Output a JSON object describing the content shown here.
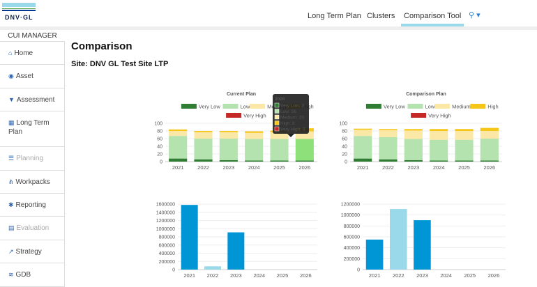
{
  "header": {
    "logo": "DNV·GL",
    "nav": [
      {
        "label": "Long Term Plan"
      },
      {
        "label": "Clusters"
      },
      {
        "label": "Comparison Tool",
        "active": true
      }
    ],
    "user_icon": "user-icon",
    "accent": "#99d9ea"
  },
  "sidebar": {
    "title": "CUI MANAGER",
    "items": [
      {
        "label": "Home",
        "icon": "home-icon",
        "glyph": "⌂"
      },
      {
        "label": "Asset",
        "icon": "cube-icon",
        "glyph": "◉"
      },
      {
        "label": "Assessment",
        "icon": "filter-icon",
        "glyph": "▼"
      },
      {
        "label": "Long Term Plan",
        "icon": "calendar-icon",
        "glyph": "▦"
      },
      {
        "label": "Planning",
        "icon": "list-icon",
        "glyph": "☰",
        "disabled": true
      },
      {
        "label": "Workpacks",
        "icon": "sitemap-icon",
        "glyph": "⋔"
      },
      {
        "label": "Reporting",
        "icon": "gear-icon",
        "glyph": "✱"
      },
      {
        "label": "Evaluation",
        "icon": "file-icon",
        "glyph": "▤",
        "disabled": true
      },
      {
        "label": "Strategy",
        "icon": "line-chart-icon",
        "glyph": "↗"
      },
      {
        "label": "GDB",
        "icon": "database-icon",
        "glyph": "≋"
      }
    ]
  },
  "page": {
    "title": "Comparison",
    "site": "Site: DNV GL Test Site LTP"
  },
  "tooltip": {
    "title": "2026",
    "lines": [
      "Very Low: 3",
      "Low: 56",
      "Medium: 20",
      "High: 8",
      "Very High: 0"
    ]
  },
  "chart_data": [
    {
      "type": "bar",
      "stacked": true,
      "title": "Current Plan",
      "categories": [
        "2021",
        "2022",
        "2023",
        "2024",
        "2025",
        "2026"
      ],
      "ylim": [
        0,
        100
      ],
      "yticks": [
        0,
        20,
        40,
        60,
        80,
        100
      ],
      "legend": "top",
      "series": [
        {
          "name": "Very Low",
          "color": "#2e7d32",
          "values": [
            8,
            6,
            4,
            3,
            3,
            3
          ]
        },
        {
          "name": "Low",
          "color": "#b5e3b0",
          "values": [
            59,
            54,
            56,
            56,
            56,
            56
          ]
        },
        {
          "name": "Medium",
          "color": "#fbe8a6",
          "values": [
            13,
            17,
            17,
            16,
            18,
            20
          ]
        },
        {
          "name": "High",
          "color": "#f5c518",
          "values": [
            4,
            3,
            3,
            4,
            4,
            8
          ]
        },
        {
          "name": "Very High",
          "color": "#c62828",
          "values": [
            0,
            0,
            0,
            0,
            0,
            0
          ]
        }
      ]
    },
    {
      "type": "bar",
      "stacked": true,
      "title": "Comparison Plan",
      "categories": [
        "2021",
        "2022",
        "2023",
        "2024",
        "2025",
        "2026"
      ],
      "ylim": [
        0,
        100
      ],
      "yticks": [
        0,
        20,
        40,
        60,
        80,
        100
      ],
      "legend": "top",
      "series": [
        {
          "name": "Very Low",
          "color": "#2e7d32",
          "values": [
            8,
            6,
            4,
            3,
            3,
            3
          ]
        },
        {
          "name": "Low",
          "color": "#b5e3b0",
          "values": [
            59,
            58,
            55,
            54,
            54,
            57
          ]
        },
        {
          "name": "Medium",
          "color": "#fbe8a6",
          "values": [
            16,
            18,
            22,
            23,
            23,
            20
          ]
        },
        {
          "name": "High",
          "color": "#f5c518",
          "values": [
            3,
            3,
            4,
            5,
            5,
            8
          ]
        },
        {
          "name": "Very High",
          "color": "#c62828",
          "values": [
            0,
            0,
            0,
            0,
            0,
            0
          ]
        }
      ]
    },
    {
      "type": "bar",
      "categories": [
        "2021",
        "2022",
        "2023",
        "2024",
        "2025",
        "2026"
      ],
      "ylim": [
        0,
        1600000
      ],
      "yticks": [
        0,
        200000,
        400000,
        600000,
        800000,
        1000000,
        1200000,
        1400000,
        1600000
      ],
      "values": [
        1580000,
        80000,
        910000,
        0,
        0,
        0
      ],
      "colors": [
        "#0096d6",
        "#99d9ea",
        "#0096d6",
        "#0096d6",
        "#0096d6",
        "#0096d6"
      ]
    },
    {
      "type": "bar",
      "categories": [
        "2021",
        "2022",
        "2023",
        "2024",
        "2025",
        "2026"
      ],
      "ylim": [
        0,
        1200000
      ],
      "yticks": [
        0,
        200000,
        400000,
        600000,
        800000,
        1000000,
        1200000
      ],
      "values": [
        550000,
        1110000,
        905000,
        0,
        0,
        0
      ],
      "colors": [
        "#0096d6",
        "#99d9ea",
        "#0096d6",
        "#0096d6",
        "#0096d6",
        "#0096d6"
      ]
    }
  ]
}
